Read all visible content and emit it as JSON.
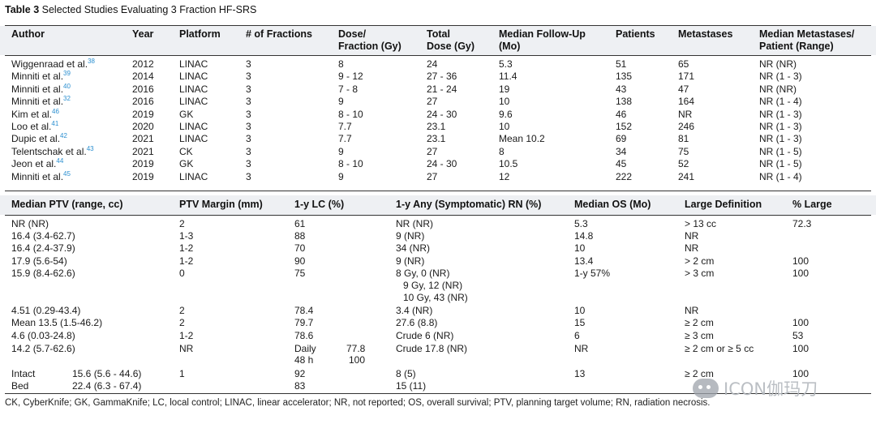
{
  "table_label": "Table 3",
  "table_title": "Selected Studies Evaluating 3 Fraction HF-SRS",
  "top_headers": {
    "author": "Author",
    "year": "Year",
    "platform": "Platform",
    "fractions": "# of Fractions",
    "dose_line1": "Dose/",
    "dose_line2": "Fraction (Gy)",
    "total_line1": "Total",
    "total_line2": "Dose (Gy)",
    "followup_line1": "Median Follow-Up",
    "followup_line2": "(Mo)",
    "patients": "Patients",
    "metastases": "Metastases",
    "median_mets_line1": "Median Metastases/",
    "median_mets_line2": "Patient (Range)"
  },
  "top_rows": [
    {
      "author": "Wiggenraad et al.",
      "ref": "38",
      "year": "2012",
      "platform": "LINAC",
      "fractions": "3",
      "dose": "8",
      "total": "24",
      "followup": "5.3",
      "patients": "51",
      "mets": "65",
      "median": "NR (NR)"
    },
    {
      "author": "Minniti et al.",
      "ref": "39",
      "year": "2014",
      "platform": "LINAC",
      "fractions": "3",
      "dose": "9 - 12",
      "total": "27 - 36",
      "followup": "11.4",
      "patients": "135",
      "mets": "171",
      "median": "NR (1 - 3)"
    },
    {
      "author": "Minniti et al.",
      "ref": "40",
      "year": "2016",
      "platform": "LINAC",
      "fractions": "3",
      "dose": "7 - 8",
      "total": "21 - 24",
      "followup": "19",
      "patients": "43",
      "mets": "47",
      "median": "NR (NR)"
    },
    {
      "author": "Minniti et al.",
      "ref": "32",
      "year": "2016",
      "platform": "LINAC",
      "fractions": "3",
      "dose": "9",
      "total": "27",
      "followup": "10",
      "patients": "138",
      "mets": "164",
      "median": "NR (1 - 4)"
    },
    {
      "author": "Kim et al.",
      "ref": "46",
      "year": "2019",
      "platform": "GK",
      "fractions": "3",
      "dose": "8 - 10",
      "total": "24 - 30",
      "followup": "9.6",
      "patients": "46",
      "mets": "NR",
      "median": "NR (1 - 3)"
    },
    {
      "author": "Loo et al.",
      "ref": "41",
      "year": "2020",
      "platform": "LINAC",
      "fractions": "3",
      "dose": "7.7",
      "total": "23.1",
      "followup": "10",
      "patients": "152",
      "mets": "246",
      "median": "NR (1 - 3)"
    },
    {
      "author": "Dupic et al.",
      "ref": "42",
      "year": "2021",
      "platform": "LINAC",
      "fractions": "3",
      "dose": "7.7",
      "total": "23.1",
      "followup": "Mean 10.2",
      "patients": "69",
      "mets": "81",
      "median": "NR (1 - 3)"
    },
    {
      "author": "Telentschak et al.",
      "ref": "43",
      "year": "2021",
      "platform": "CK",
      "fractions": "3",
      "dose": "9",
      "total": "27",
      "followup": "8",
      "patients": "34",
      "mets": "75",
      "median": "NR (1 - 5)"
    },
    {
      "author": "Jeon et al.",
      "ref": "44",
      "year": "2019",
      "platform": "GK",
      "fractions": "3",
      "dose": "8 - 10",
      "total": "24 - 30",
      "followup": "10.5",
      "patients": "45",
      "mets": "52",
      "median": "NR (1 - 5)"
    },
    {
      "author": "Minniti et al.",
      "ref": "45",
      "year": "2019",
      "platform": "LINAC",
      "fractions": "3",
      "dose": "9",
      "total": "27",
      "followup": "12",
      "patients": "222",
      "mets": "241",
      "median": "NR (1 - 4)"
    }
  ],
  "bottom_headers": {
    "ptv": "Median PTV (range, cc)",
    "margin": "PTV Margin (mm)",
    "lc": "1-y LC (%)",
    "rn": "1-y Any (Symptomatic) RN (%)",
    "os": "Median OS (Mo)",
    "large_def": "Large Definition",
    "pct_large": "% Large"
  },
  "bottom_rows": [
    {
      "ptv": "NR (NR)",
      "margin": "2",
      "lc": "61",
      "rn": "NR (NR)",
      "os": "5.3",
      "large_def": "> 13 cc",
      "pct": "72.3"
    },
    {
      "ptv": "16.4 (3.4-62.7)",
      "margin": "1-3",
      "lc": "88",
      "rn": "9 (NR)",
      "os": "14.8",
      "large_def": "NR",
      "pct": ""
    },
    {
      "ptv": "16.4 (2.4-37.9)",
      "margin": "1-2",
      "lc": "70",
      "rn": "34 (NR)",
      "os": "10",
      "large_def": "NR",
      "pct": ""
    },
    {
      "ptv": "17.9 (5.6-54)",
      "margin": "1-2",
      "lc": "90",
      "rn": "9 (NR)",
      "os": "13.4",
      "large_def": "> 2 cm",
      "pct": "100"
    },
    {
      "ptv": "15.9 (8.4-62.6)",
      "margin": "0",
      "lc": "75",
      "rn": "8 Gy, 0 (NR)",
      "rn2": "9 Gy, 12 (NR)",
      "rn3": "10 Gy, 43 (NR)",
      "os": "1-y 57%",
      "large_def": "> 3 cm",
      "pct": "100"
    },
    {
      "ptv": "4.51 (0.29-43.4)",
      "margin": "2",
      "lc": "78.4",
      "rn": "3.4 (NR)",
      "os": "10",
      "large_def": "NR",
      "pct": ""
    },
    {
      "ptv": "Mean 13.5 (1.5-46.2)",
      "margin": "2",
      "lc": "79.7",
      "rn": "27.6 (8.8)",
      "os": "15",
      "large_def": "≥ 2 cm",
      "pct": "100"
    },
    {
      "ptv": "4.6 (0.03-24.8)",
      "margin": "1-2",
      "lc": "78.6",
      "rn": "Crude 6 (NR)",
      "os": "6",
      "large_def": "≥ 3 cm",
      "pct": "53"
    },
    {
      "ptv": "14.2 (5.7-62.6)",
      "margin": "NR",
      "lc_a_label": "Daily",
      "lc_a_val": "77.8",
      "lc_b_label": "48 h",
      "lc_b_val": "100",
      "rn": "Crude 17.8 (NR)",
      "os": "NR",
      "large_def": "≥ 2 cm or ≥ 5 cc",
      "pct": "100"
    },
    {
      "ptv_a_label": "Intact",
      "ptv_a_val": "15.6 (5.6 - 44.6)",
      "ptv_b_label": "Bed",
      "ptv_b_val": "22.4 (6.3 - 67.4)",
      "margin": "1",
      "lc_a": "92",
      "lc_b": "83",
      "rn_a": "8 (5)",
      "rn_b": "15 (11)",
      "os": "13",
      "large_def": "≥ 2 cm",
      "pct": "100"
    }
  ],
  "footnote": "CK, CyberKnife; GK, GammaKnife; LC, local control; LINAC, linear accelerator; NR, not reported; OS, overall survival; PTV, planning target volume; RN, radiation necrosis.",
  "watermark_text": "ICON伽玛刀",
  "watermark_icon": "wechat-icon"
}
